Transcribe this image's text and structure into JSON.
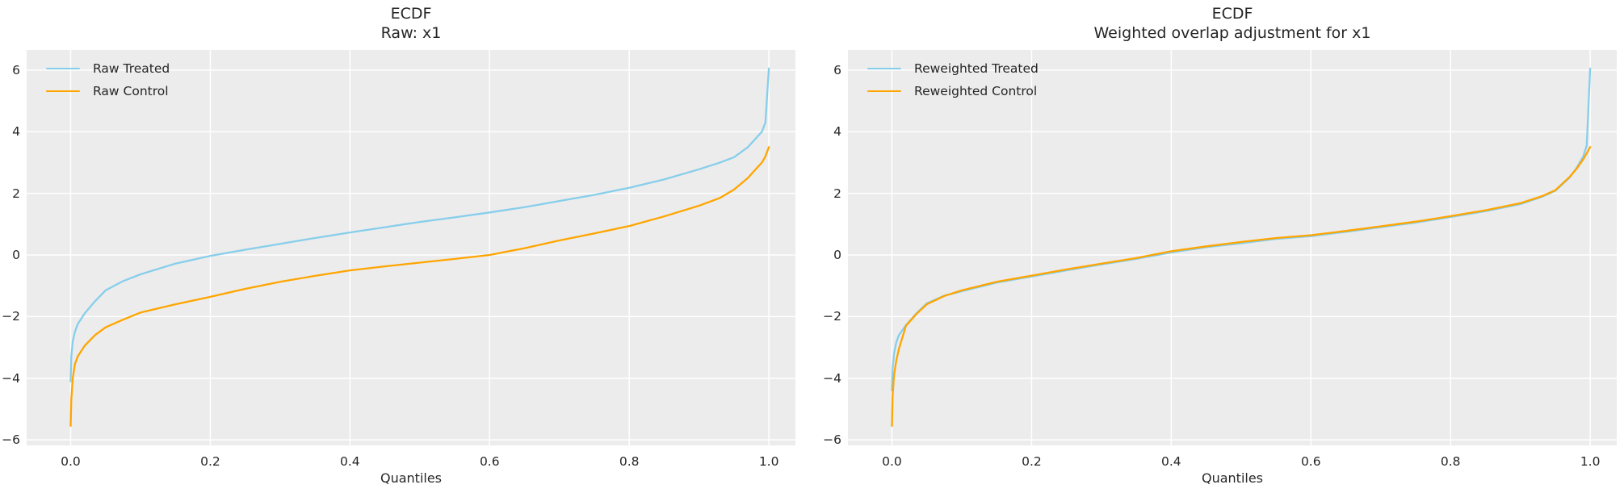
{
  "figure": {
    "background": "#ffffff",
    "axes_background": "#ececec",
    "grid_color": "#ffffff",
    "text_color": "#262626",
    "treated_color": "#87CEEB",
    "control_color": "#FFA500"
  },
  "chart_data": [
    {
      "type": "line",
      "title_line1": "ECDF",
      "title_line2": "Raw: x1",
      "xlabel": "Quantiles",
      "ylabel": "",
      "grid": true,
      "legend_position": "upper left",
      "xlim": [
        -0.063,
        1.038
      ],
      "ylim": [
        -6.18,
        6.65
      ],
      "xtick_values": [
        0.0,
        0.2,
        0.4,
        0.6,
        0.8,
        1.0
      ],
      "xtick_labels": [
        "0.0",
        "0.2",
        "0.4",
        "0.6",
        "0.8",
        "1.0"
      ],
      "ytick_values": [
        -6,
        -4,
        -2,
        0,
        2,
        4,
        6
      ],
      "ytick_labels": [
        "−6",
        "−4",
        "−2",
        "0",
        "2",
        "4",
        "6"
      ],
      "series": [
        {
          "name": "Raw Treated",
          "color": "#87CEEB",
          "x": [
            0.0,
            0.001,
            0.003,
            0.006,
            0.01,
            0.02,
            0.035,
            0.05,
            0.075,
            0.1,
            0.15,
            0.2,
            0.25,
            0.3,
            0.35,
            0.4,
            0.45,
            0.5,
            0.55,
            0.6,
            0.65,
            0.7,
            0.75,
            0.8,
            0.85,
            0.9,
            0.93,
            0.95,
            0.97,
            0.98,
            0.99,
            0.995,
            1.0
          ],
          "y": [
            -4.1,
            -3.3,
            -2.8,
            -2.5,
            -2.25,
            -1.9,
            -1.5,
            -1.15,
            -0.85,
            -0.63,
            -0.28,
            -0.03,
            0.17,
            0.36,
            0.55,
            0.73,
            0.9,
            1.07,
            1.22,
            1.38,
            1.55,
            1.75,
            1.95,
            2.18,
            2.45,
            2.78,
            3.0,
            3.17,
            3.5,
            3.75,
            4.0,
            4.3,
            6.05
          ]
        },
        {
          "name": "Raw Control",
          "color": "#FFA500",
          "x": [
            0.0,
            0.001,
            0.003,
            0.006,
            0.01,
            0.02,
            0.035,
            0.05,
            0.075,
            0.1,
            0.15,
            0.2,
            0.25,
            0.3,
            0.35,
            0.4,
            0.45,
            0.5,
            0.55,
            0.6,
            0.65,
            0.7,
            0.75,
            0.8,
            0.85,
            0.9,
            0.93,
            0.95,
            0.97,
            0.98,
            0.99,
            0.995,
            1.0
          ],
          "y": [
            -5.55,
            -4.7,
            -4.0,
            -3.55,
            -3.3,
            -2.95,
            -2.6,
            -2.35,
            -2.1,
            -1.87,
            -1.6,
            -1.36,
            -1.1,
            -0.87,
            -0.68,
            -0.5,
            -0.37,
            -0.25,
            -0.13,
            0.0,
            0.22,
            0.47,
            0.7,
            0.94,
            1.25,
            1.6,
            1.85,
            2.12,
            2.5,
            2.75,
            3.0,
            3.2,
            3.5
          ]
        }
      ]
    },
    {
      "type": "line",
      "title_line1": "ECDF",
      "title_line2": "Weighted overlap adjustment for x1",
      "xlabel": "Quantiles",
      "ylabel": "",
      "grid": true,
      "legend_position": "upper left",
      "xlim": [
        -0.063,
        1.038
      ],
      "ylim": [
        -6.18,
        6.65
      ],
      "xtick_values": [
        0.0,
        0.2,
        0.4,
        0.6,
        0.8,
        1.0
      ],
      "xtick_labels": [
        "0.0",
        "0.2",
        "0.4",
        "0.6",
        "0.8",
        "1.0"
      ],
      "ytick_values": [
        -6,
        -4,
        -2,
        0,
        2,
        4,
        6
      ],
      "ytick_labels": [
        "−6",
        "−4",
        "−2",
        "0",
        "2",
        "4",
        "6"
      ],
      "series": [
        {
          "name": "Reweighted Treated",
          "color": "#87CEEB",
          "x": [
            0.0,
            0.001,
            0.003,
            0.006,
            0.01,
            0.02,
            0.035,
            0.05,
            0.075,
            0.1,
            0.15,
            0.2,
            0.25,
            0.3,
            0.35,
            0.4,
            0.45,
            0.5,
            0.55,
            0.6,
            0.65,
            0.7,
            0.75,
            0.8,
            0.85,
            0.9,
            0.93,
            0.95,
            0.97,
            0.98,
            0.99,
            0.995,
            1.0
          ],
          "y": [
            -4.4,
            -3.7,
            -3.2,
            -2.85,
            -2.6,
            -2.28,
            -1.9,
            -1.57,
            -1.32,
            -1.18,
            -0.9,
            -0.7,
            -0.5,
            -0.31,
            -0.13,
            0.08,
            0.25,
            0.38,
            0.52,
            0.61,
            0.75,
            0.9,
            1.05,
            1.23,
            1.42,
            1.65,
            1.88,
            2.08,
            2.5,
            2.8,
            3.2,
            3.55,
            6.05
          ]
        },
        {
          "name": "Reweighted Control",
          "color": "#FFA500",
          "x": [
            0.0,
            0.001,
            0.003,
            0.006,
            0.01,
            0.02,
            0.035,
            0.05,
            0.075,
            0.1,
            0.15,
            0.2,
            0.25,
            0.3,
            0.35,
            0.4,
            0.45,
            0.5,
            0.55,
            0.6,
            0.65,
            0.7,
            0.75,
            0.8,
            0.85,
            0.9,
            0.93,
            0.95,
            0.97,
            0.98,
            0.99,
            0.995,
            1.0
          ],
          "y": [
            -5.55,
            -4.6,
            -3.9,
            -3.45,
            -3.05,
            -2.3,
            -1.92,
            -1.6,
            -1.33,
            -1.15,
            -0.87,
            -0.67,
            -0.47,
            -0.28,
            -0.1,
            0.12,
            0.28,
            0.42,
            0.55,
            0.64,
            0.78,
            0.93,
            1.08,
            1.26,
            1.45,
            1.68,
            1.9,
            2.1,
            2.52,
            2.78,
            3.1,
            3.3,
            3.5
          ]
        }
      ]
    }
  ]
}
